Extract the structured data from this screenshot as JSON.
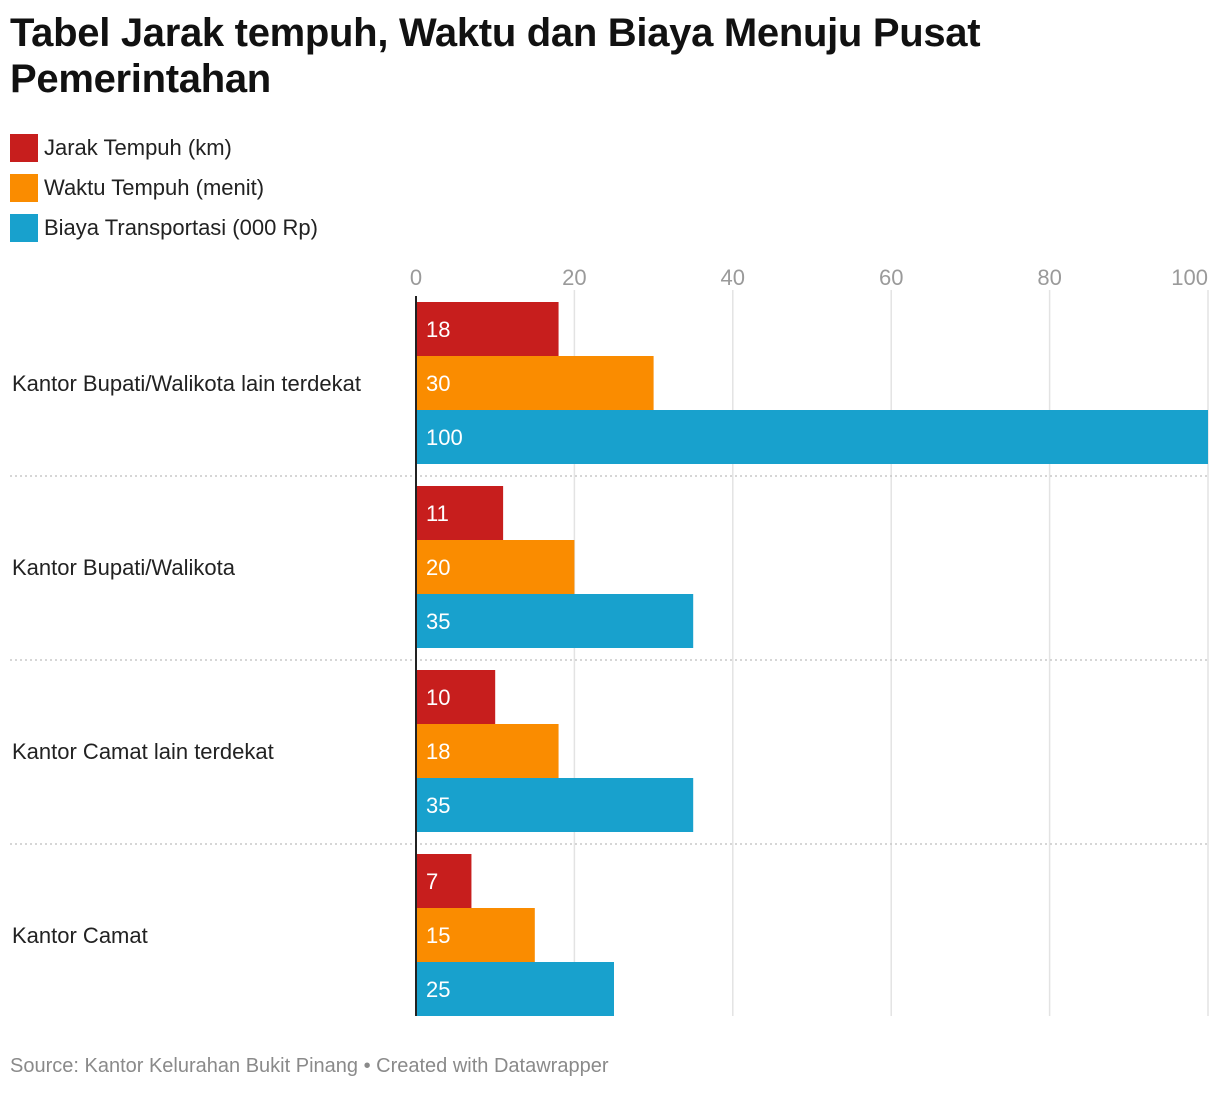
{
  "title": "Tabel Jarak tempuh, Waktu dan Biaya Menuju Pusat Pemerintahan",
  "footer": {
    "source": "Source: Kantor Kelurahan Bukit Pinang",
    "separator": "•",
    "credit": "Created with Datawrapper"
  },
  "chart_data": {
    "type": "bar",
    "orientation": "horizontal",
    "title": "Tabel Jarak tempuh, Waktu dan Biaya Menuju Pusat Pemerintahan",
    "categories": [
      "Kantor Bupati/Walikota lain terdekat",
      "Kantor Bupati/Walikota",
      "Kantor Camat lain terdekat",
      "Kantor Camat"
    ],
    "series": [
      {
        "name": "Jarak Tempuh (km)",
        "color": "#c71e1d",
        "values": [
          18,
          11,
          10,
          7
        ]
      },
      {
        "name": "Waktu Tempuh (menit)",
        "color": "#fa8c00",
        "values": [
          30,
          20,
          18,
          15
        ]
      },
      {
        "name": "Biaya Transportasi (000 Rp)",
        "color": "#18a1cd",
        "values": [
          100,
          35,
          35,
          25
        ]
      }
    ],
    "xlim": [
      0,
      100
    ],
    "ticks": [
      0,
      20,
      40,
      60,
      80,
      100
    ],
    "tick_labels": [
      "0",
      "20",
      "40",
      "60",
      "80",
      "100"
    ],
    "xlabel": "",
    "ylabel": "",
    "grid": true,
    "legend": "top-left"
  }
}
